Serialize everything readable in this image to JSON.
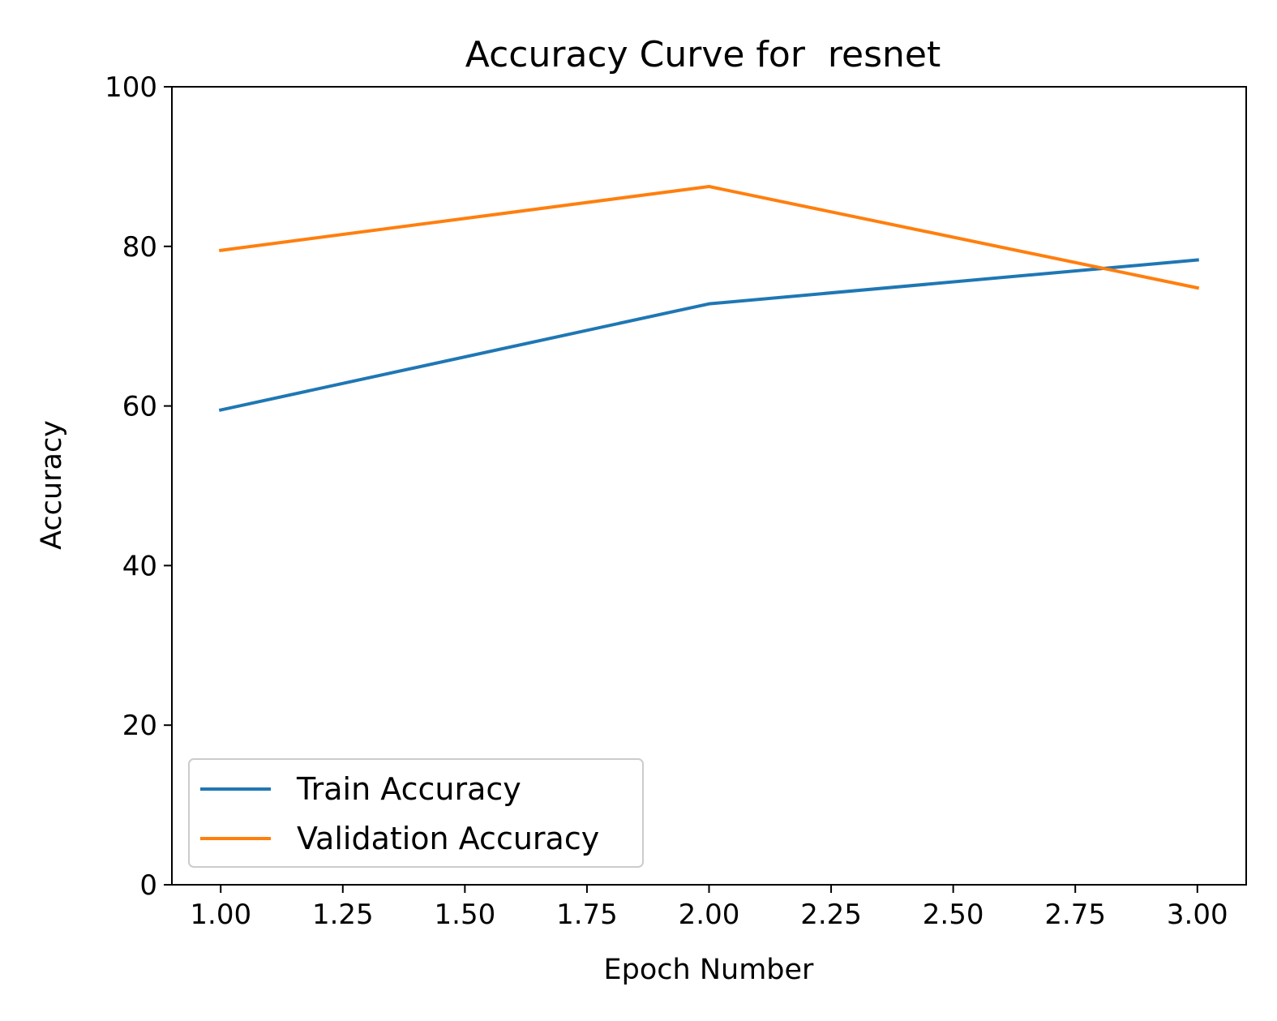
{
  "chart_data": {
    "type": "line",
    "title": "Accuracy Curve for  resnet",
    "xlabel": "Epoch Number",
    "ylabel": "Accuracy",
    "xlim": [
      0.9,
      3.1
    ],
    "ylim": [
      0,
      100
    ],
    "x_ticks": [
      "1.00",
      "1.25",
      "1.50",
      "1.75",
      "2.00",
      "2.25",
      "2.50",
      "2.75",
      "3.00"
    ],
    "y_ticks": [
      "0",
      "20",
      "40",
      "60",
      "80",
      "100"
    ],
    "grid": false,
    "legend_position": "lower-left",
    "x": [
      1,
      2,
      3
    ],
    "series": [
      {
        "name": "Train Accuracy",
        "color": "#1f77b4",
        "values": [
          59.5,
          72.8,
          78.3
        ]
      },
      {
        "name": "Validation Accuracy",
        "color": "#ff7f0e",
        "values": [
          79.5,
          87.5,
          74.8
        ]
      }
    ]
  }
}
